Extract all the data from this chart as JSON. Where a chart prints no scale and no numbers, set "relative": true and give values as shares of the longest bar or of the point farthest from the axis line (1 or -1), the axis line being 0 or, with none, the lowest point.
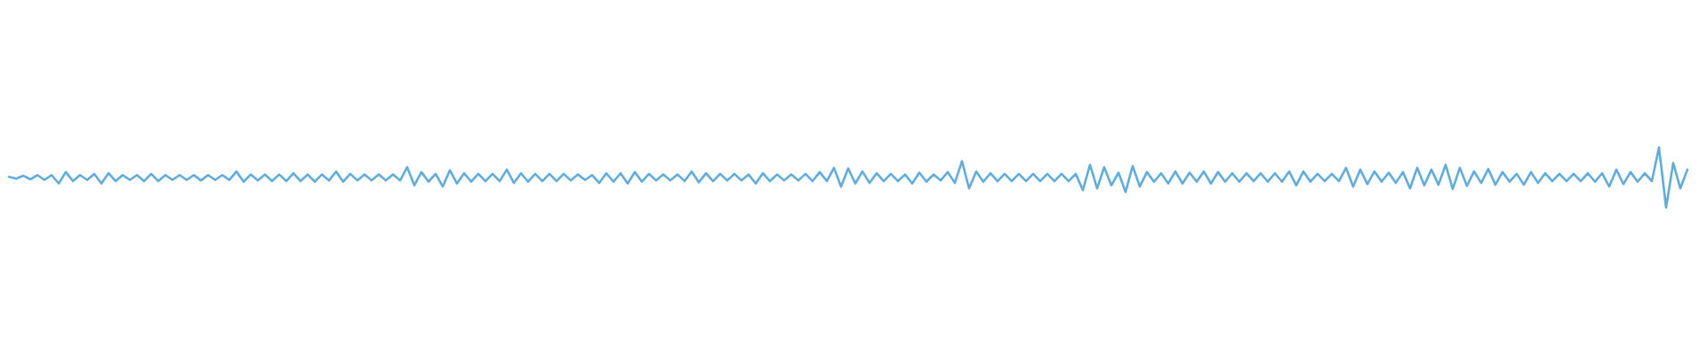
{
  "chart_data": {
    "type": "line",
    "relative": true,
    "color": "#5dade2",
    "categories": [
      null,
      null,
      null,
      null,
      null,
      null,
      null,
      null,
      null,
      null,
      null,
      null,
      null,
      null,
      null,
      null,
      null,
      null,
      null,
      null,
      null,
      null,
      null,
      null,
      null,
      null,
      null,
      null,
      null,
      null,
      null,
      null,
      null,
      null,
      null,
      null,
      null,
      null,
      null,
      null,
      null,
      null,
      null,
      null,
      null,
      null,
      null,
      null,
      null,
      null,
      null,
      null,
      null,
      null,
      null,
      null,
      null,
      null,
      null,
      null,
      null,
      null,
      null,
      null,
      null,
      null,
      null,
      null,
      null,
      null,
      null,
      null,
      null,
      null,
      null,
      null,
      null,
      null,
      null,
      null,
      null,
      null,
      null,
      null,
      null,
      null,
      null,
      null,
      null,
      null,
      null,
      null,
      null,
      null,
      null,
      null,
      null,
      null,
      null,
      null,
      null,
      null,
      null,
      null,
      null,
      null,
      null,
      null,
      null,
      null,
      null,
      null,
      null,
      null,
      null,
      null,
      null,
      null,
      null,
      null,
      null,
      null,
      null,
      null,
      null,
      null,
      null,
      null,
      null,
      null,
      null,
      null,
      null,
      null,
      null,
      null,
      null,
      null,
      null,
      null,
      null,
      null,
      null,
      null,
      null,
      null,
      null,
      null,
      null,
      null,
      null,
      null,
      null,
      null,
      null,
      null,
      null,
      null,
      null,
      null,
      null,
      null,
      null,
      null,
      null,
      null,
      null,
      null,
      null,
      null,
      null,
      null,
      null,
      null,
      null,
      null,
      null,
      null,
      null,
      null,
      null,
      null,
      null,
      null,
      null,
      null,
      null,
      null,
      null,
      null,
      null,
      null,
      null,
      null,
      null,
      null,
      null,
      null,
      null,
      null,
      null,
      null,
      null,
      null,
      null,
      null,
      null,
      null,
      null,
      null,
      null,
      null,
      null,
      null,
      null,
      null,
      null,
      null,
      null,
      null,
      null,
      null,
      null,
      null,
      null,
      null,
      null,
      null,
      null,
      null,
      null,
      null,
      null,
      null,
      null,
      null,
      null
    ],
    "values": [
      0.51,
      0.48,
      0.53,
      0.47,
      0.54,
      0.46,
      0.54,
      0.4,
      0.59,
      0.44,
      0.54,
      0.46,
      0.56,
      0.4,
      0.57,
      0.44,
      0.54,
      0.46,
      0.54,
      0.44,
      0.56,
      0.44,
      0.54,
      0.46,
      0.54,
      0.46,
      0.54,
      0.45,
      0.54,
      0.46,
      0.54,
      0.46,
      0.6,
      0.43,
      0.55,
      0.45,
      0.55,
      0.44,
      0.55,
      0.44,
      0.57,
      0.44,
      0.55,
      0.43,
      0.55,
      0.45,
      0.6,
      0.43,
      0.56,
      0.45,
      0.55,
      0.45,
      0.55,
      0.45,
      0.55,
      0.45,
      0.67,
      0.37,
      0.59,
      0.43,
      0.56,
      0.35,
      0.62,
      0.4,
      0.57,
      0.43,
      0.56,
      0.44,
      0.56,
      0.44,
      0.63,
      0.41,
      0.57,
      0.43,
      0.56,
      0.44,
      0.56,
      0.44,
      0.56,
      0.45,
      0.55,
      0.46,
      0.54,
      0.41,
      0.57,
      0.43,
      0.57,
      0.4,
      0.59,
      0.43,
      0.56,
      0.45,
      0.55,
      0.45,
      0.55,
      0.44,
      0.6,
      0.42,
      0.57,
      0.44,
      0.56,
      0.45,
      0.56,
      0.45,
      0.55,
      0.4,
      0.57,
      0.44,
      0.55,
      0.45,
      0.55,
      0.45,
      0.56,
      0.44,
      0.59,
      0.44,
      0.66,
      0.35,
      0.65,
      0.4,
      0.6,
      0.41,
      0.57,
      0.44,
      0.56,
      0.44,
      0.55,
      0.4,
      0.58,
      0.43,
      0.55,
      0.45,
      0.59,
      0.41,
      0.77,
      0.32,
      0.6,
      0.43,
      0.57,
      0.44,
      0.56,
      0.44,
      0.56,
      0.44,
      0.56,
      0.44,
      0.56,
      0.44,
      0.56,
      0.44,
      0.56,
      0.29,
      0.71,
      0.32,
      0.67,
      0.37,
      0.58,
      0.26,
      0.69,
      0.35,
      0.59,
      0.43,
      0.57,
      0.4,
      0.6,
      0.4,
      0.58,
      0.43,
      0.6,
      0.4,
      0.59,
      0.43,
      0.57,
      0.43,
      0.57,
      0.44,
      0.57,
      0.43,
      0.57,
      0.43,
      0.6,
      0.37,
      0.6,
      0.43,
      0.56,
      0.44,
      0.56,
      0.44,
      0.66,
      0.35,
      0.63,
      0.39,
      0.6,
      0.43,
      0.58,
      0.41,
      0.59,
      0.32,
      0.66,
      0.37,
      0.63,
      0.38,
      0.71,
      0.31,
      0.66,
      0.36,
      0.6,
      0.41,
      0.64,
      0.38,
      0.59,
      0.43,
      0.56,
      0.38,
      0.59,
      0.41,
      0.57,
      0.44,
      0.56,
      0.44,
      0.56,
      0.44,
      0.57,
      0.43,
      0.57,
      0.35,
      0.63,
      0.39,
      0.59,
      0.43,
      0.57,
      0.44,
      1,
      0,
      0.74,
      0.32,
      0.63
    ]
  }
}
